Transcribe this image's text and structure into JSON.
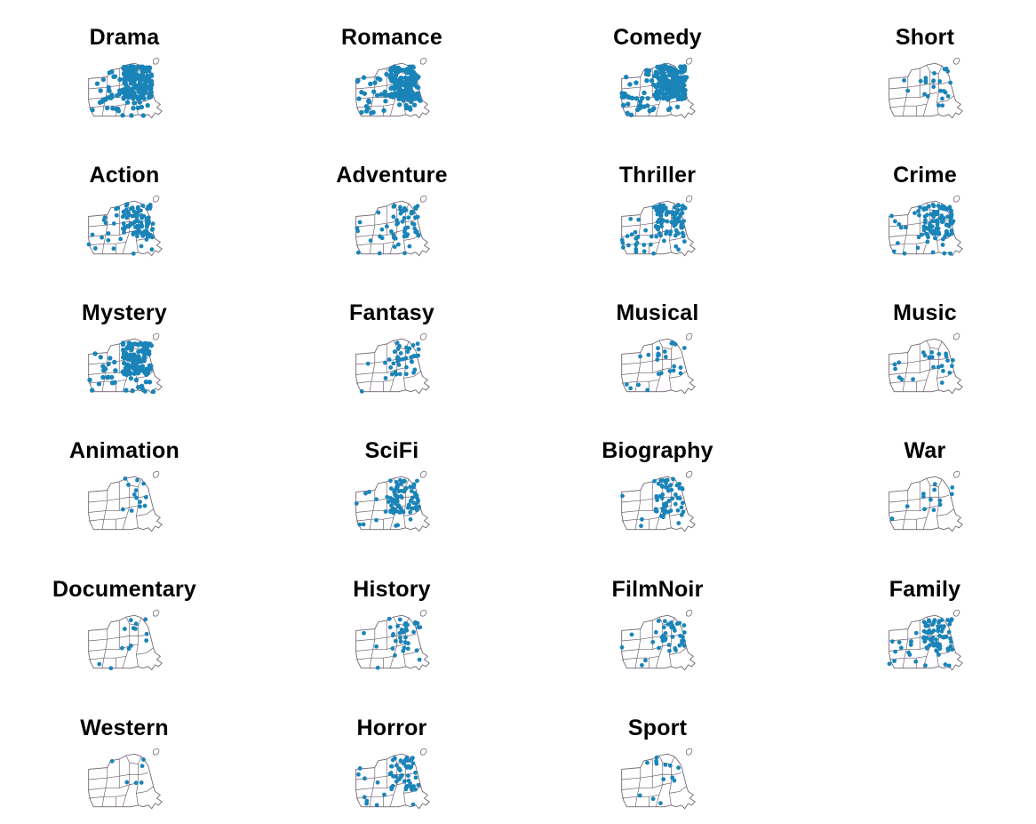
{
  "point_color": "#1a84b8",
  "boundary_color": "#6e6170",
  "panels": [
    {
      "title": "Drama",
      "density": 10
    },
    {
      "title": "Romance",
      "density": 9
    },
    {
      "title": "Comedy",
      "density": 10
    },
    {
      "title": "Short",
      "density": 3
    },
    {
      "title": "Action",
      "density": 7
    },
    {
      "title": "Adventure",
      "density": 5
    },
    {
      "title": "Thriller",
      "density": 7
    },
    {
      "title": "Crime",
      "density": 7
    },
    {
      "title": "Mystery",
      "density": 8
    },
    {
      "title": "Fantasy",
      "density": 4
    },
    {
      "title": "Musical",
      "density": 3
    },
    {
      "title": "Music",
      "density": 3
    },
    {
      "title": "Animation",
      "density": 2
    },
    {
      "title": "SciFi",
      "density": 6
    },
    {
      "title": "Biography",
      "density": 5
    },
    {
      "title": "War",
      "density": 2
    },
    {
      "title": "Documentary",
      "density": 2
    },
    {
      "title": "History",
      "density": 4
    },
    {
      "title": "FilmNoir",
      "density": 4
    },
    {
      "title": "Family",
      "density": 6
    },
    {
      "title": "Western",
      "density": 1
    },
    {
      "title": "Horror",
      "density": 5
    },
    {
      "title": "Sport",
      "density": 2
    }
  ]
}
